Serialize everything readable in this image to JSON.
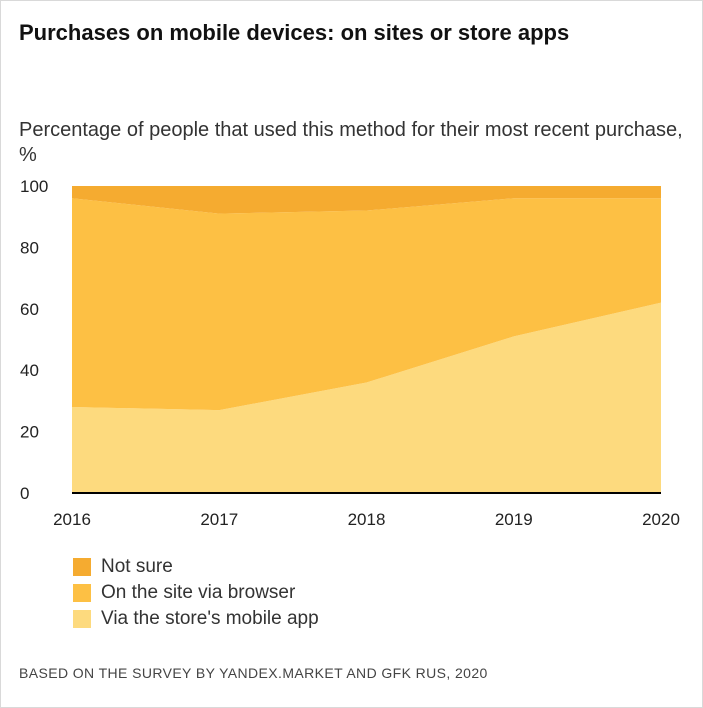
{
  "title": "Purchases on mobile devices: on sites or store apps",
  "subtitle": "Percentage of people that used this method for their most recent purchase, %",
  "source": "BASED ON THE SURVEY BY YANDEX.MARKET AND GFK RUS, 2020",
  "colors": {
    "not_sure": "#f5ab30",
    "browser": "#fdc044",
    "app": "#fdda7e",
    "axis": "#000000"
  },
  "chart_data": {
    "type": "area",
    "stacked": true,
    "title": "Purchases on mobile devices: on sites or store apps",
    "ylabel": "Percentage of people that used this method for their most recent purchase, %",
    "xlabel": "",
    "x": [
      "2016",
      "2017",
      "2018",
      "2019",
      "2020"
    ],
    "ylim": [
      0,
      100
    ],
    "yticks": [
      "0",
      "20",
      "40",
      "60",
      "80",
      "100"
    ],
    "series": [
      {
        "name": "Via the store's mobile app",
        "key": "app",
        "values": [
          28,
          27,
          36,
          51,
          62
        ]
      },
      {
        "name": "On the site via browser",
        "key": "browser",
        "values": [
          68,
          64,
          56,
          45,
          34
        ]
      },
      {
        "name": "Not sure",
        "key": "not_sure",
        "values": [
          4,
          9,
          8,
          4,
          4
        ]
      }
    ],
    "legend": [
      {
        "name": "Not sure",
        "key": "not_sure"
      },
      {
        "name": "On the site via browser",
        "key": "browser"
      },
      {
        "name": "Via the store's mobile app",
        "key": "app"
      }
    ],
    "legend_position": "bottom-left",
    "grid": false
  }
}
